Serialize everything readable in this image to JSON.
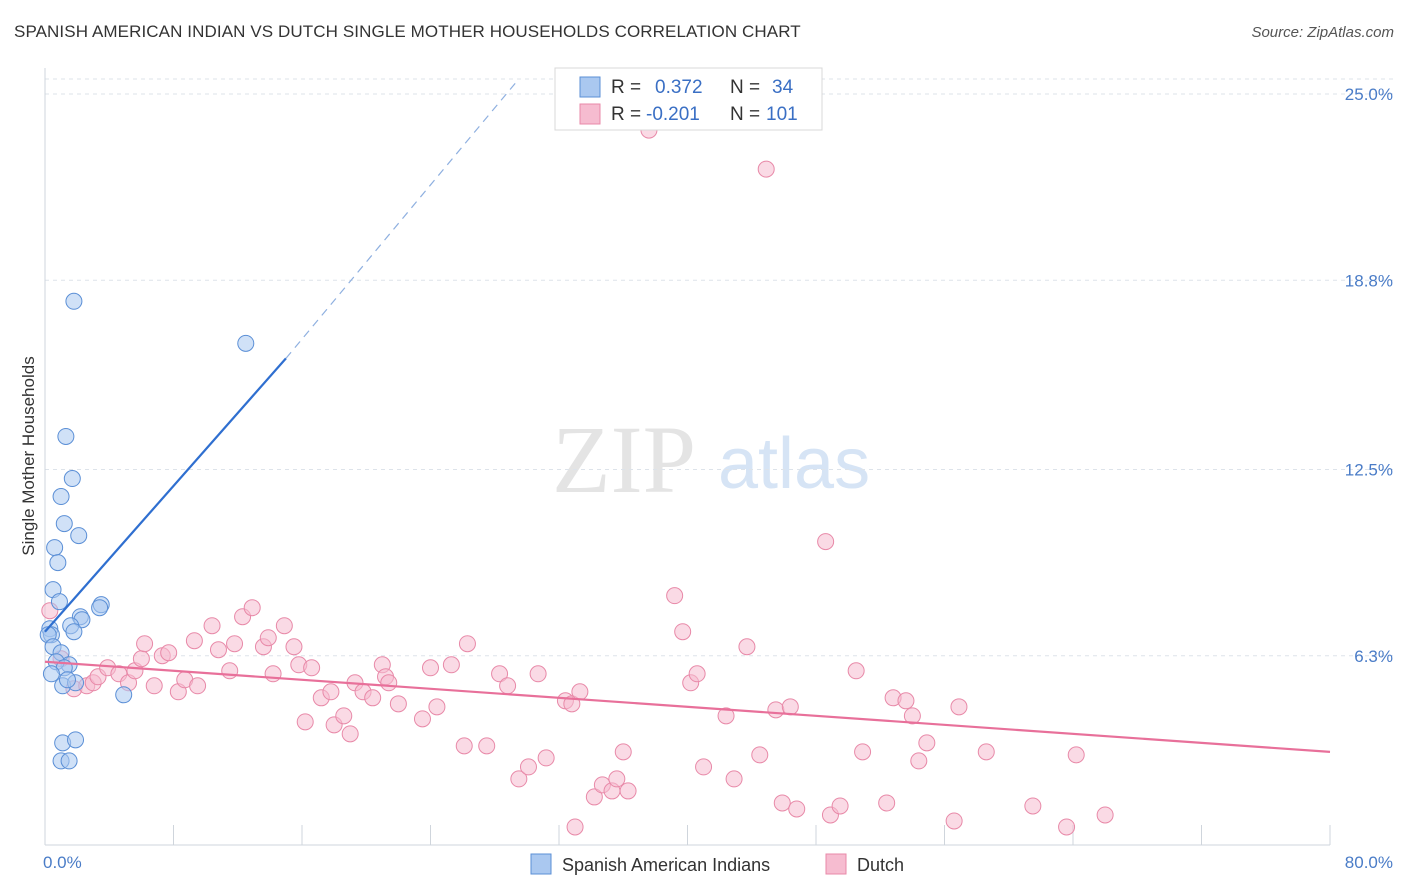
{
  "header": {
    "title": "SPANISH AMERICAN INDIAN VS DUTCH SINGLE MOTHER HOUSEHOLDS CORRELATION CHART",
    "source": "Source: ZipAtlas.com"
  },
  "watermark": {
    "zip": "ZIP",
    "atlas": "atlas"
  },
  "colors": {
    "blue_fill": "#aac8f0",
    "blue_stroke": "#5b8fd6",
    "blue_line": "#2f6fd0",
    "pink_fill": "#f6bcd0",
    "pink_stroke": "#e889a8",
    "pink_line": "#e8709a",
    "grid": "#dde3ea",
    "tick_text": "#4a7cc7"
  },
  "legend": {
    "rows": [
      {
        "r_label": "R =",
        "r_value": "0.372",
        "n_label": "N =",
        "n_value": "34"
      },
      {
        "r_label": "R =",
        "r_value": "-0.201",
        "n_label": "N =",
        "n_value": "101"
      }
    ]
  },
  "bottom_legend": [
    "Spanish American Indians",
    "Dutch"
  ],
  "chart_data": {
    "type": "scatter",
    "title": "SPANISH AMERICAN INDIAN VS DUTCH SINGLE MOTHER HOUSEHOLDS CORRELATION CHART",
    "xlabel": "",
    "ylabel": "Single Mother Households",
    "xlim": [
      0,
      80
    ],
    "ylim": [
      0,
      25.5
    ],
    "x_tick_labels": [
      "0.0%",
      "80.0%"
    ],
    "y_ticks": [
      6.3,
      12.5,
      18.8,
      25.0
    ],
    "y_tick_labels": [
      "6.3%",
      "12.5%",
      "18.8%",
      "25.0%"
    ],
    "series": [
      {
        "name": "Spanish American Indians",
        "r": 0.372,
        "n": 34,
        "trend": {
          "x0": 0,
          "y0": 7.1,
          "x1": 15,
          "y1": 16.2,
          "dash_to_x": 29.5,
          "dash_to_y": 25.5
        },
        "points": [
          [
            1.8,
            18.1
          ],
          [
            12.5,
            16.7
          ],
          [
            1.3,
            13.6
          ],
          [
            1.7,
            12.2
          ],
          [
            1.0,
            11.6
          ],
          [
            1.2,
            10.7
          ],
          [
            2.1,
            10.3
          ],
          [
            0.6,
            9.9
          ],
          [
            0.8,
            9.4
          ],
          [
            0.5,
            8.5
          ],
          [
            0.9,
            8.1
          ],
          [
            3.5,
            8.0
          ],
          [
            3.4,
            7.9
          ],
          [
            2.2,
            7.6
          ],
          [
            2.3,
            7.5
          ],
          [
            1.6,
            7.3
          ],
          [
            1.8,
            7.1
          ],
          [
            0.3,
            7.2
          ],
          [
            0.4,
            7.0
          ],
          [
            0.2,
            7.0
          ],
          [
            0.5,
            6.6
          ],
          [
            1.0,
            6.4
          ],
          [
            1.5,
            6.0
          ],
          [
            0.7,
            6.1
          ],
          [
            1.2,
            5.9
          ],
          [
            0.4,
            5.7
          ],
          [
            1.1,
            5.3
          ],
          [
            1.9,
            5.4
          ],
          [
            1.4,
            5.5
          ],
          [
            4.9,
            5.0
          ],
          [
            1.1,
            3.4
          ],
          [
            1.9,
            3.5
          ],
          [
            1.0,
            2.8
          ],
          [
            1.5,
            2.8
          ]
        ]
      },
      {
        "name": "Dutch",
        "r": -0.201,
        "n": 101,
        "trend": {
          "x0": 0,
          "y0": 6.1,
          "x1": 80,
          "y1": 3.1
        },
        "points": [
          [
            0.3,
            7.8
          ],
          [
            1.0,
            6.2
          ],
          [
            1.8,
            5.2
          ],
          [
            2.6,
            5.3
          ],
          [
            3.0,
            5.4
          ],
          [
            3.3,
            5.6
          ],
          [
            3.9,
            5.9
          ],
          [
            4.6,
            5.7
          ],
          [
            5.2,
            5.4
          ],
          [
            5.6,
            5.8
          ],
          [
            6.0,
            6.2
          ],
          [
            6.2,
            6.7
          ],
          [
            6.8,
            5.3
          ],
          [
            7.3,
            6.3
          ],
          [
            7.7,
            6.4
          ],
          [
            8.3,
            5.1
          ],
          [
            8.7,
            5.5
          ],
          [
            9.3,
            6.8
          ],
          [
            9.5,
            5.3
          ],
          [
            10.4,
            7.3
          ],
          [
            10.8,
            6.5
          ],
          [
            11.5,
            5.8
          ],
          [
            11.8,
            6.7
          ],
          [
            12.3,
            7.6
          ],
          [
            12.9,
            7.9
          ],
          [
            13.6,
            6.6
          ],
          [
            13.9,
            6.9
          ],
          [
            14.2,
            5.7
          ],
          [
            14.9,
            7.3
          ],
          [
            15.5,
            6.6
          ],
          [
            15.8,
            6.0
          ],
          [
            16.2,
            4.1
          ],
          [
            16.6,
            5.9
          ],
          [
            17.2,
            4.9
          ],
          [
            17.8,
            5.1
          ],
          [
            18.0,
            4.0
          ],
          [
            18.6,
            4.3
          ],
          [
            19.0,
            3.7
          ],
          [
            19.3,
            5.4
          ],
          [
            19.8,
            5.1
          ],
          [
            20.4,
            4.9
          ],
          [
            21.0,
            6.0
          ],
          [
            21.2,
            5.6
          ],
          [
            21.4,
            5.4
          ],
          [
            22.0,
            4.7
          ],
          [
            23.5,
            4.2
          ],
          [
            24.0,
            5.9
          ],
          [
            24.4,
            4.6
          ],
          [
            25.3,
            6.0
          ],
          [
            26.1,
            3.3
          ],
          [
            26.3,
            6.7
          ],
          [
            27.5,
            3.3
          ],
          [
            28.3,
            5.7
          ],
          [
            28.8,
            5.3
          ],
          [
            29.5,
            2.2
          ],
          [
            30.1,
            2.6
          ],
          [
            30.7,
            5.7
          ],
          [
            31.2,
            2.9
          ],
          [
            32.4,
            4.8
          ],
          [
            32.8,
            4.7
          ],
          [
            33.3,
            5.1
          ],
          [
            34.2,
            1.6
          ],
          [
            34.7,
            2.0
          ],
          [
            35.3,
            1.8
          ],
          [
            35.6,
            2.2
          ],
          [
            36.0,
            3.1
          ],
          [
            36.3,
            1.8
          ],
          [
            37.6,
            23.8
          ],
          [
            39.2,
            8.3
          ],
          [
            39.7,
            7.1
          ],
          [
            40.2,
            5.4
          ],
          [
            40.6,
            5.7
          ],
          [
            41.0,
            2.6
          ],
          [
            42.4,
            4.3
          ],
          [
            42.9,
            2.2
          ],
          [
            43.7,
            6.6
          ],
          [
            44.5,
            3.0
          ],
          [
            44.9,
            22.5
          ],
          [
            45.5,
            4.5
          ],
          [
            45.9,
            1.4
          ],
          [
            46.4,
            4.6
          ],
          [
            46.8,
            1.2
          ],
          [
            48.6,
            10.1
          ],
          [
            48.9,
            1.0
          ],
          [
            49.5,
            1.3
          ],
          [
            50.5,
            5.8
          ],
          [
            50.9,
            3.1
          ],
          [
            52.4,
            1.4
          ],
          [
            52.8,
            4.9
          ],
          [
            53.6,
            4.8
          ],
          [
            54.0,
            4.3
          ],
          [
            54.4,
            2.8
          ],
          [
            54.9,
            3.4
          ],
          [
            56.6,
            0.8
          ],
          [
            56.9,
            4.6
          ],
          [
            58.6,
            3.1
          ],
          [
            63.6,
            0.6
          ],
          [
            64.2,
            3.0
          ],
          [
            61.5,
            1.3
          ],
          [
            66.0,
            1.0
          ],
          [
            33.0,
            0.6
          ]
        ]
      }
    ]
  }
}
